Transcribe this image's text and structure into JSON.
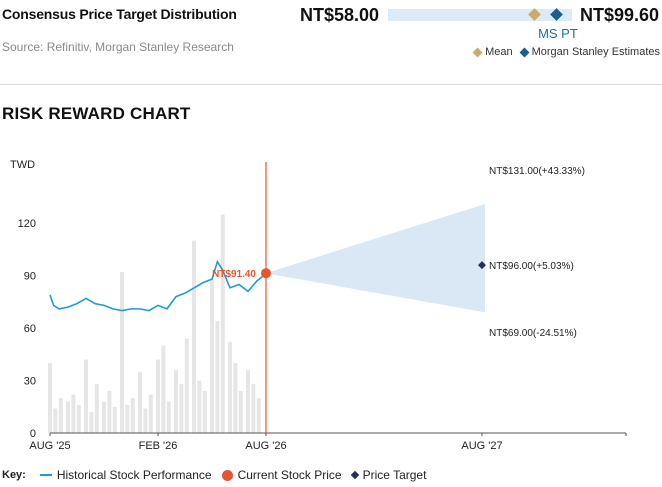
{
  "header": {
    "title": "Consensus Price Target Distribution",
    "source": "Source: Refinitiv, Morgan Stanley Research",
    "low_label": "NT$58.00",
    "high_label": "NT$99.60",
    "ms_pt_label": "MS PT",
    "legend": {
      "mean": "Mean",
      "estimates": "Morgan Stanley Estimates"
    },
    "colors": {
      "mean": "#c9ab6e",
      "ms": "#1c5f8e",
      "bar": "#dcebf6"
    },
    "distribution": {
      "min": 58.0,
      "max": 99.6,
      "mean": 90.9,
      "ms_pt": 96.0
    }
  },
  "section_title": "RISK REWARD CHART",
  "key": {
    "label": "Key:",
    "historical": "Historical Stock Performance",
    "current": "Current Stock Price",
    "target": "Price Target"
  },
  "chart_data": {
    "type": "line",
    "ylabel": "TWD",
    "ylim": [
      0,
      155
    ],
    "yticks": [
      0,
      30,
      60,
      90,
      120
    ],
    "x_tick_labels": [
      "AUG '25",
      "FEB '26",
      "AUG '26",
      "AUG '27"
    ],
    "x_tick_positions": [
      0,
      6,
      12,
      24
    ],
    "xlim": [
      0,
      32
    ],
    "series": [
      {
        "name": "Historical Stock Performance",
        "color": "#1e9bd7",
        "x": [
          0,
          0.2,
          0.5,
          1,
          1.5,
          2,
          2.5,
          3,
          3.5,
          4,
          4.5,
          5,
          5.5,
          6,
          6.5,
          7,
          7.5,
          8,
          8.5,
          9,
          9.3,
          9.6,
          10,
          10.5,
          11,
          11.5,
          12
        ],
        "values": [
          79,
          73,
          71,
          72,
          74,
          77,
          74,
          73,
          71,
          70,
          71,
          71,
          70,
          73,
          71,
          78,
          80,
          83,
          86,
          88,
          98,
          93,
          83,
          85,
          81,
          87,
          91
        ]
      }
    ],
    "volume": {
      "x": [
        0,
        0.3,
        0.6,
        1,
        1.3,
        1.6,
        2,
        2.3,
        2.6,
        3,
        3.3,
        3.6,
        4,
        4.3,
        4.6,
        5,
        5.3,
        5.6,
        6,
        6.3,
        6.6,
        7,
        7.3,
        7.6,
        8,
        8.3,
        8.6,
        9,
        9.3,
        9.6,
        10,
        10.3,
        10.6,
        11,
        11.3,
        11.6
      ],
      "values": [
        40,
        14,
        20,
        18,
        22,
        16,
        42,
        12,
        28,
        18,
        24,
        15,
        92,
        16,
        20,
        35,
        14,
        22,
        42,
        50,
        18,
        36,
        28,
        54,
        110,
        30,
        24,
        88,
        64,
        125,
        52,
        40,
        24,
        36,
        28,
        20
      ],
      "color": "#e6e6e6"
    },
    "current_price": {
      "x": 12,
      "value": 91.4,
      "label": "NT$91.40",
      "color": "#e8542c"
    },
    "price_target": {
      "x": 24,
      "value": 96.0,
      "label": "NT$96.00(+5.03%)",
      "color": "#2b2e5c"
    },
    "bull_case": {
      "x": 24,
      "value": 131.0,
      "label": "NT$131.00(+43.33%)"
    },
    "bear_case": {
      "x": 24,
      "value": 69.0,
      "label": "NT$69.00(-24.51%)"
    },
    "cone_color": "#d9e8f4",
    "legend": "bottom",
    "grid": false
  }
}
